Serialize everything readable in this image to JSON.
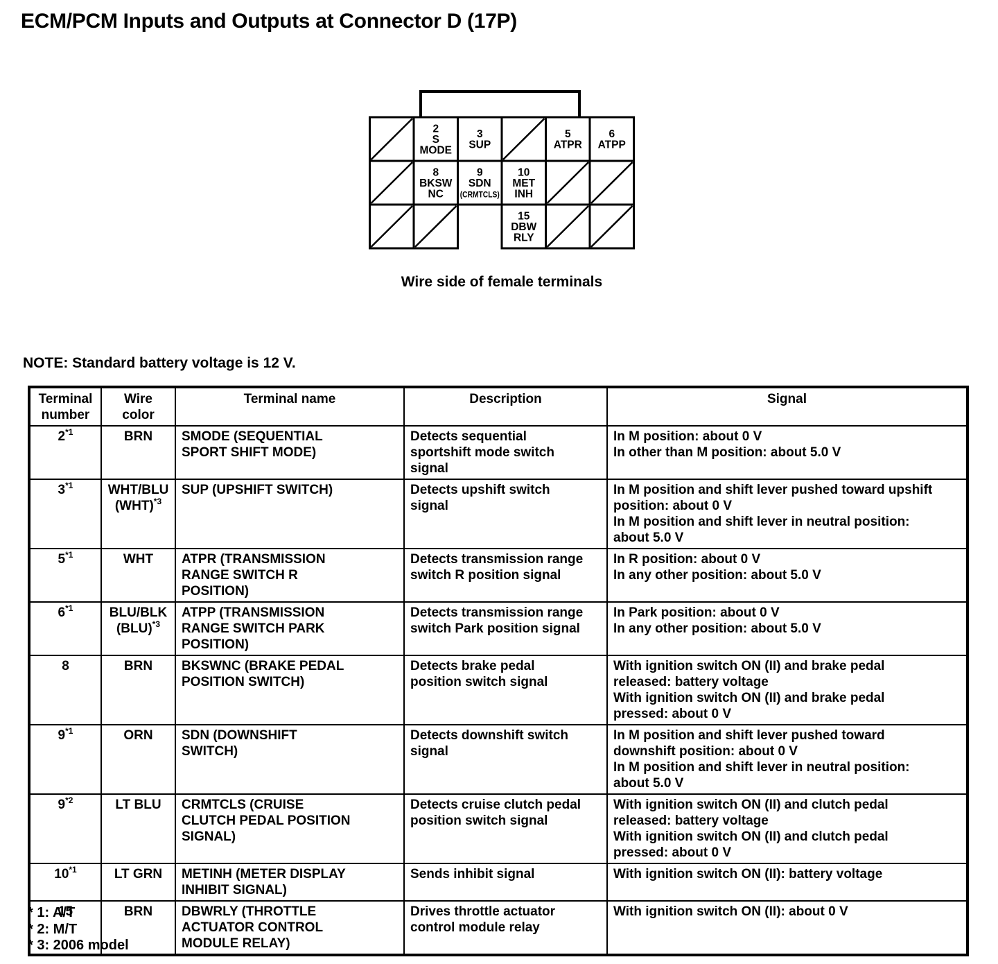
{
  "doc": {
    "title": "ECM/PCM Inputs and Outputs at Connector D (17P)",
    "caption": "Wire side of female terminals",
    "note": "NOTE: Standard battery voltage is 12 V.",
    "footnotes": [
      "* 1: A/T",
      "* 2: M/T",
      "* 3: 2006 model"
    ]
  },
  "colors": {
    "ink": "#000000",
    "paper": "#ffffff"
  },
  "connector": {
    "rows": [
      [
        {
          "type": "hatched"
        },
        {
          "type": "pin",
          "lines": [
            "2",
            "S",
            "MODE"
          ]
        },
        {
          "type": "pin",
          "lines": [
            "3",
            "SUP"
          ]
        },
        {
          "type": "hatched"
        },
        {
          "type": "pin",
          "lines": [
            "5",
            "ATPR"
          ]
        },
        {
          "type": "pin",
          "lines": [
            "6",
            "ATPP"
          ]
        }
      ],
      [
        {
          "type": "hatched"
        },
        {
          "type": "pin",
          "lines": [
            "8",
            "BKSW",
            "NC"
          ]
        },
        {
          "type": "pin",
          "lines": [
            "9",
            "SDN",
            "(CRMTCLS)"
          ]
        },
        {
          "type": "pin",
          "lines": [
            "10",
            "MET",
            "INH"
          ]
        },
        {
          "type": "hatched"
        },
        {
          "type": "hatched"
        }
      ],
      [
        {
          "type": "hatched"
        },
        {
          "type": "hatched"
        },
        {
          "type": "empty"
        },
        {
          "type": "pin",
          "lines": [
            "15",
            "DBW",
            "RLY"
          ]
        },
        {
          "type": "hatched"
        },
        {
          "type": "hatched"
        }
      ]
    ]
  },
  "table": {
    "headers": [
      "Terminal\nnumber",
      "Wire color",
      "Terminal name",
      "Description",
      "Signal"
    ],
    "rows": [
      {
        "terminal": {
          "num": "2",
          "sup": "*1"
        },
        "wire": [
          {
            "text": "BRN",
            "sup": ""
          }
        ],
        "name": "SMODE (SEQUENTIAL\nSPORT SHIFT MODE)",
        "description": "Detects sequential\nsportshift mode switch\nsignal",
        "signals": [
          "In M position: about 0 V",
          "In other than M position: about 5.0 V"
        ]
      },
      {
        "terminal": {
          "num": "3",
          "sup": "*1"
        },
        "wire": [
          {
            "text": "WHT/BLU",
            "sup": ""
          },
          {
            "text": "(WHT)",
            "sup": "*3"
          }
        ],
        "name": "SUP (UPSHIFT SWITCH)",
        "description": "Detects upshift switch\nsignal",
        "signals": [
          "In M position and shift lever pushed toward upshift\nposition: about 0 V",
          "In M position and shift lever in neutral position:\nabout 5.0 V"
        ]
      },
      {
        "terminal": {
          "num": "5",
          "sup": "*1"
        },
        "wire": [
          {
            "text": "WHT",
            "sup": ""
          }
        ],
        "name": "ATPR (TRANSMISSION\nRANGE SWITCH R\nPOSITION)",
        "description": "Detects transmission range\nswitch R position signal",
        "signals": [
          "In R position: about 0 V",
          "In any other position: about 5.0 V"
        ]
      },
      {
        "terminal": {
          "num": "6",
          "sup": "*1"
        },
        "wire": [
          {
            "text": "BLU/BLK",
            "sup": ""
          },
          {
            "text": "(BLU)",
            "sup": "*3"
          }
        ],
        "name": "ATPP (TRANSMISSION\nRANGE SWITCH PARK\nPOSITION)",
        "description": "Detects transmission range\nswitch Park position signal",
        "signals": [
          "In Park position: about 0 V",
          "In any other position: about 5.0 V"
        ]
      },
      {
        "terminal": {
          "num": "8",
          "sup": ""
        },
        "wire": [
          {
            "text": "BRN",
            "sup": ""
          }
        ],
        "name": "BKSWNC (BRAKE PEDAL\nPOSITION SWITCH)",
        "description": "Detects brake pedal\nposition switch signal",
        "signals": [
          "With ignition switch ON (II) and brake pedal\nreleased: battery voltage",
          "With ignition switch ON (II) and brake pedal\npressed: about 0 V"
        ]
      },
      {
        "terminal": {
          "num": "9",
          "sup": "*1"
        },
        "wire": [
          {
            "text": "ORN",
            "sup": ""
          }
        ],
        "name": "SDN (DOWNSHIFT\nSWITCH)",
        "description": "Detects downshift switch\nsignal",
        "signals": [
          "In M position and shift lever pushed toward\ndownshift position: about 0 V",
          "In M position and shift lever in neutral position:\nabout 5.0 V"
        ]
      },
      {
        "terminal": {
          "num": "9",
          "sup": "*2"
        },
        "wire": [
          {
            "text": "LT BLU",
            "sup": ""
          }
        ],
        "name": "CRMTCLS (CRUISE\nCLUTCH PEDAL POSITION\nSIGNAL)",
        "description": "Detects cruise clutch pedal\nposition switch signal",
        "signals": [
          "With ignition switch ON (II) and clutch pedal\nreleased: battery voltage",
          "With ignition switch ON (II) and clutch pedal\npressed: about 0 V"
        ]
      },
      {
        "terminal": {
          "num": "10",
          "sup": "*1"
        },
        "wire": [
          {
            "text": "LT GRN",
            "sup": ""
          }
        ],
        "name": "METINH (METER DISPLAY\nINHIBIT SIGNAL)",
        "description": "Sends inhibit signal",
        "signals": [
          "With ignition switch ON (II): battery voltage"
        ]
      },
      {
        "terminal": {
          "num": "15",
          "sup": ""
        },
        "wire": [
          {
            "text": "BRN",
            "sup": ""
          }
        ],
        "name": "DBWRLY (THROTTLE\nACTUATOR CONTROL\nMODULE RELAY)",
        "description": "Drives throttle actuator\ncontrol module relay",
        "signals": [
          "With ignition switch ON (II): about 0 V"
        ]
      }
    ]
  }
}
